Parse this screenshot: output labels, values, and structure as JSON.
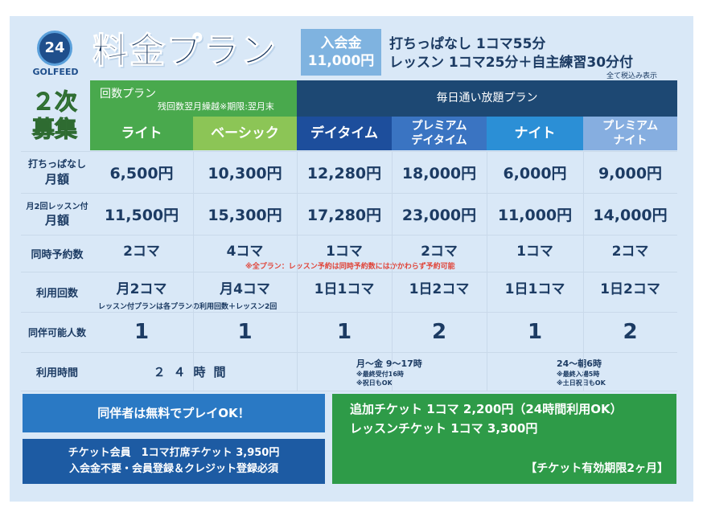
{
  "logo": {
    "mark": "24",
    "brand": "GOLFEED"
  },
  "title": "料金プラン",
  "join_fee": {
    "label": "入会金",
    "price": "11,000円"
  },
  "header_lines": [
    "打ちっぱなし 1コマ55分",
    "レッスン 1コマ25分＋自主練習30分付"
  ],
  "tax_note": "全て税込み表示",
  "recruit": [
    "２次",
    "募集"
  ],
  "groups": {
    "kaisu": {
      "label": "回数プラン",
      "note": "残回数翌月繰越※期限:翌月末"
    },
    "mainichi": {
      "label": "毎日通い放題プラン"
    }
  },
  "plans": [
    {
      "name": "ライト",
      "color": "#49a94d"
    },
    {
      "name": "ベーシック",
      "color": "#8cc556"
    },
    {
      "name": "デイタイム",
      "color": "#1d4e9c"
    },
    {
      "name": "プレミアム\nデイタイム",
      "color": "#3a74c2"
    },
    {
      "name": "ナイト",
      "color": "#2b8fd6"
    },
    {
      "name": "プレミアム\nナイト",
      "color": "#86aee0"
    }
  ],
  "rows": {
    "range": {
      "label1": "打ちっぱなし",
      "label2": "月額",
      "values": [
        "6,500円",
        "10,300円",
        "12,280円",
        "18,000円",
        "6,000円",
        "9,000円"
      ]
    },
    "lesson": {
      "label1": "月2回レッスン付",
      "label2": "月額",
      "values": [
        "11,500円",
        "15,300円",
        "17,280円",
        "23,000円",
        "11,000円",
        "14,000円"
      ]
    },
    "reserve": {
      "label": "同時予約数",
      "values": [
        "2コマ",
        "4コマ",
        "1コマ",
        "2コマ",
        "1コマ",
        "2コマ"
      ],
      "note": "※全プラン：レッスン予約は同時予約数にはかかわらず予約可能"
    },
    "usage": {
      "label": "利用回数",
      "values": [
        "月2コマ",
        "月4コマ",
        "1日1コマ",
        "1日2コマ",
        "1日1コマ",
        "1日2コマ"
      ],
      "note": "レッスン付プランは各プランの利用回数＋レッスン2回"
    },
    "companion": {
      "label": "同伴可能人数",
      "values": [
        "1",
        "1",
        "1",
        "2",
        "1",
        "2"
      ]
    },
    "hours": {
      "label": "利用時間",
      "kaisu": "２４時間",
      "day": {
        "main": "月～金  9～17時",
        "note1": "※最終受付16時",
        "note2": "※祝日もOK"
      },
      "night": {
        "main": "24～朝6時",
        "note1": "※最終入場5時",
        "note2": "※土日祝日もOK"
      }
    }
  },
  "bottom": {
    "companion_free": "同伴者は無料でプレイOK！",
    "ticket_member_line1": "チケット会員　1コマ打席チケット 3,950円",
    "ticket_member_line2": "入会金不要・会員登録＆クレジット登録必須",
    "extra_ticket": "追加チケット 1コマ 2,200円（24時間利用OK）",
    "lesson_ticket": "レッスンチケット 1コマ 3,300円",
    "validity": "【チケット有効期限2ヶ月】"
  }
}
